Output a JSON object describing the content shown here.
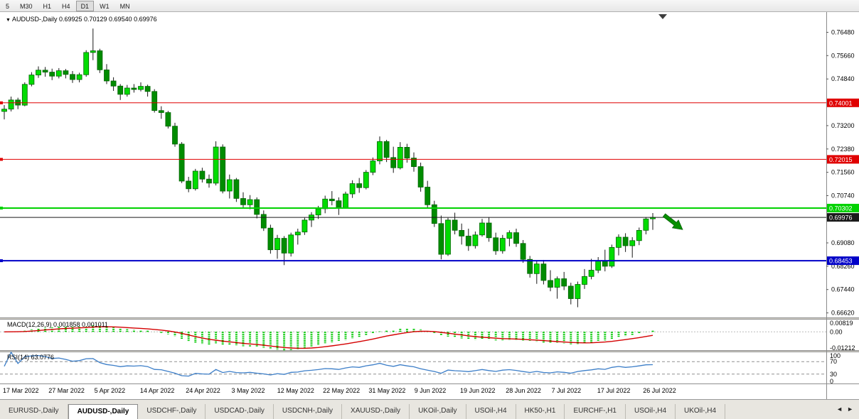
{
  "toolbar": {
    "timeframes": [
      "5",
      "M30",
      "H1",
      "H4",
      "D1",
      "W1",
      "MN"
    ],
    "active_timeframe": "D1"
  },
  "chart": {
    "marker_icon": "▼",
    "symbol_title": "AUDUSD-,Daily",
    "ohlc_title": "0.69925 0.70129 0.69540 0.69976"
  },
  "chart_data": {
    "type": "candlestick",
    "symbol": "AUDUSD",
    "timeframe": "Daily",
    "last_candle": {
      "open": 0.69925,
      "high": 0.70129,
      "low": 0.6954,
      "close": 0.69976
    },
    "price_range": [
      0.6646,
      0.7719
    ],
    "y_ticks": [
      0.7648,
      0.7566,
      0.7484,
      0.732,
      0.7238,
      0.7156,
      0.7074,
      0.6908,
      0.6826,
      0.6744,
      0.6662
    ],
    "x_labels": [
      "17 Mar 2022",
      "27 Mar 2022",
      "5 Apr 2022",
      "14 Apr 2022",
      "24 Apr 2022",
      "3 May 2022",
      "12 May 2022",
      "22 May 2022",
      "31 May 2022",
      "9 Jun 2022",
      "19 Jun 2022",
      "28 Jun 2022",
      "7 Jul 2022",
      "17 Jul 2022",
      "26 Jul 2022"
    ],
    "candles": [
      [
        0.737,
        0.7392,
        0.7342,
        0.7378
      ],
      [
        0.7378,
        0.7422,
        0.737,
        0.741
      ],
      [
        0.741,
        0.7418,
        0.7378,
        0.7392
      ],
      [
        0.7392,
        0.7472,
        0.7388,
        0.7465
      ],
      [
        0.7465,
        0.7508,
        0.7458,
        0.7498
      ],
      [
        0.7498,
        0.7528,
        0.7488,
        0.7515
      ],
      [
        0.7515,
        0.7526,
        0.7492,
        0.7508
      ],
      [
        0.7508,
        0.752,
        0.748,
        0.7494
      ],
      [
        0.7494,
        0.7522,
        0.7486,
        0.7513
      ],
      [
        0.7513,
        0.7519,
        0.7486,
        0.75
      ],
      [
        0.75,
        0.7512,
        0.747,
        0.7482
      ],
      [
        0.7482,
        0.7506,
        0.7472,
        0.7499
      ],
      [
        0.7499,
        0.7585,
        0.7492,
        0.7577
      ],
      [
        0.7577,
        0.7661,
        0.755,
        0.7583
      ],
      [
        0.7583,
        0.759,
        0.7505,
        0.7516
      ],
      [
        0.7516,
        0.7536,
        0.7466,
        0.7477
      ],
      [
        0.7477,
        0.749,
        0.7442,
        0.7459
      ],
      [
        0.7459,
        0.7466,
        0.741,
        0.743
      ],
      [
        0.743,
        0.7463,
        0.7422,
        0.7452
      ],
      [
        0.7452,
        0.7466,
        0.7436,
        0.7447
      ],
      [
        0.7447,
        0.7472,
        0.744,
        0.7458
      ],
      [
        0.7458,
        0.7464,
        0.7422,
        0.744
      ],
      [
        0.744,
        0.7448,
        0.7366,
        0.7373
      ],
      [
        0.7373,
        0.7388,
        0.7344,
        0.7366
      ],
      [
        0.7366,
        0.7372,
        0.731,
        0.7318
      ],
      [
        0.7318,
        0.733,
        0.7246,
        0.7255
      ],
      [
        0.7255,
        0.7262,
        0.7118,
        0.7125
      ],
      [
        0.7125,
        0.714,
        0.7086,
        0.7098
      ],
      [
        0.7098,
        0.7168,
        0.7092,
        0.716
      ],
      [
        0.716,
        0.7172,
        0.712,
        0.7132
      ],
      [
        0.7132,
        0.7148,
        0.7102,
        0.7118
      ],
      [
        0.7118,
        0.7265,
        0.711,
        0.7245
      ],
      [
        0.7245,
        0.7254,
        0.7082,
        0.709
      ],
      [
        0.709,
        0.7148,
        0.7064,
        0.713
      ],
      [
        0.713,
        0.7136,
        0.7052,
        0.7064
      ],
      [
        0.7064,
        0.7086,
        0.703,
        0.7042
      ],
      [
        0.7042,
        0.7076,
        0.7026,
        0.706
      ],
      [
        0.706,
        0.7068,
        0.6994,
        0.7008
      ],
      [
        0.7008,
        0.7022,
        0.695,
        0.696
      ],
      [
        0.696,
        0.6972,
        0.687,
        0.6884
      ],
      [
        0.6884,
        0.6936,
        0.6852,
        0.6924
      ],
      [
        0.6924,
        0.6932,
        0.683,
        0.6872
      ],
      [
        0.6872,
        0.6944,
        0.686,
        0.6936
      ],
      [
        0.6936,
        0.6958,
        0.6902,
        0.6946
      ],
      [
        0.6946,
        0.6996,
        0.6936,
        0.6988
      ],
      [
        0.6988,
        0.7016,
        0.6964,
        0.7006
      ],
      [
        0.7006,
        0.7038,
        0.6992,
        0.7028
      ],
      [
        0.7028,
        0.7074,
        0.7012,
        0.7062
      ],
      [
        0.7062,
        0.709,
        0.704,
        0.7056
      ],
      [
        0.7056,
        0.7068,
        0.7006,
        0.7032
      ],
      [
        0.7032,
        0.7088,
        0.7028,
        0.708
      ],
      [
        0.708,
        0.7128,
        0.7066,
        0.7116
      ],
      [
        0.7116,
        0.7136,
        0.7084,
        0.7102
      ],
      [
        0.7102,
        0.7164,
        0.7096,
        0.7156
      ],
      [
        0.7156,
        0.7208,
        0.7146,
        0.7196
      ],
      [
        0.7196,
        0.7282,
        0.7184,
        0.7264
      ],
      [
        0.7264,
        0.727,
        0.7192,
        0.7208
      ],
      [
        0.7208,
        0.7246,
        0.7154,
        0.7172
      ],
      [
        0.7172,
        0.7262,
        0.7166,
        0.7244
      ],
      [
        0.7244,
        0.7256,
        0.719,
        0.7206
      ],
      [
        0.7206,
        0.7226,
        0.7158,
        0.7176
      ],
      [
        0.7176,
        0.719,
        0.7088,
        0.7104
      ],
      [
        0.7104,
        0.7126,
        0.7028,
        0.7042
      ],
      [
        0.7042,
        0.7056,
        0.6964,
        0.6976
      ],
      [
        0.6976,
        0.7004,
        0.685,
        0.6868
      ],
      [
        0.6868,
        0.6996,
        0.6862,
        0.6988
      ],
      [
        0.6988,
        0.7014,
        0.6938,
        0.6952
      ],
      [
        0.6952,
        0.6976,
        0.6902,
        0.6932
      ],
      [
        0.6932,
        0.6958,
        0.688,
        0.6898
      ],
      [
        0.6898,
        0.6948,
        0.6888,
        0.6936
      ],
      [
        0.6936,
        0.6992,
        0.693,
        0.6978
      ],
      [
        0.6978,
        0.6998,
        0.6912,
        0.6926
      ],
      [
        0.6926,
        0.6944,
        0.6866,
        0.688
      ],
      [
        0.688,
        0.6936,
        0.687,
        0.6924
      ],
      [
        0.6924,
        0.6952,
        0.6896,
        0.6944
      ],
      [
        0.6944,
        0.6958,
        0.6894,
        0.6906
      ],
      [
        0.6906,
        0.6918,
        0.6838,
        0.685
      ],
      [
        0.685,
        0.6862,
        0.6786,
        0.68
      ],
      [
        0.68,
        0.6846,
        0.6764,
        0.6834
      ],
      [
        0.6834,
        0.6848,
        0.6762,
        0.6776
      ],
      [
        0.6776,
        0.6812,
        0.6738,
        0.6752
      ],
      [
        0.6752,
        0.679,
        0.6712,
        0.6782
      ],
      [
        0.6782,
        0.6806,
        0.6742,
        0.6756
      ],
      [
        0.6756,
        0.6768,
        0.6692,
        0.6712
      ],
      [
        0.6712,
        0.6772,
        0.6682,
        0.6762
      ],
      [
        0.6762,
        0.6816,
        0.6746,
        0.679
      ],
      [
        0.679,
        0.6852,
        0.678,
        0.6812
      ],
      [
        0.6812,
        0.6858,
        0.6802,
        0.6846
      ],
      [
        0.6846,
        0.6884,
        0.6808,
        0.6826
      ],
      [
        0.6826,
        0.6902,
        0.682,
        0.6892
      ],
      [
        0.6892,
        0.6938,
        0.6864,
        0.6928
      ],
      [
        0.6928,
        0.6942,
        0.6876,
        0.6898
      ],
      [
        0.6898,
        0.6928,
        0.6856,
        0.6916
      ],
      [
        0.6916,
        0.6962,
        0.69,
        0.6952
      ],
      [
        0.6952,
        0.6998,
        0.6938,
        0.6992
      ],
      [
        0.69925,
        0.70129,
        0.6954,
        0.69976
      ]
    ],
    "hlines": [
      {
        "value": 0.74001,
        "label": "0.74001",
        "color": "#E00000",
        "width": 1
      },
      {
        "value": 0.72015,
        "label": "0.72015",
        "color": "#E00000",
        "width": 1
      },
      {
        "value": 0.70302,
        "label": "0.70302",
        "color": "#00D200",
        "width": 2
      },
      {
        "value": 0.68453,
        "label": "0.68453",
        "color": "#0000C8",
        "width": 2
      }
    ],
    "current_price": {
      "value": 0.69976,
      "label": "0.69976",
      "color": "#1A1A1A"
    },
    "candle_colors": {
      "bull": "#00DC00",
      "bear": "#008C00",
      "wick": "#1A1A1A",
      "outline": "#006400"
    },
    "arrow_annotation": {
      "color": "#089000"
    },
    "macd": {
      "label": "MACD(12,26,9) 0.001858 0.001011",
      "fast": 12,
      "slow": 26,
      "signal_period": 9,
      "range": [
        -0.01212,
        0.00819
      ],
      "ticks": [
        {
          "value": 0.00819,
          "label": "0.00819"
        },
        {
          "value": 0,
          "label": "0.00"
        },
        {
          "value": -0.01212,
          "label": "-0.01212"
        }
      ],
      "histogram_color": "#00C800",
      "signal_color": "#D40000"
    },
    "rsi": {
      "label": "RSI(14) 63.0776",
      "period": 14,
      "value": 63.0776,
      "range": [
        0,
        100
      ],
      "levels": [
        30,
        70
      ],
      "ticks": [
        {
          "value": 100,
          "label": "100"
        },
        {
          "value": 70,
          "label": "70"
        },
        {
          "value": 30,
          "label": "30"
        },
        {
          "value": 0,
          "label": "0"
        }
      ],
      "line_color": "#3C7EC8",
      "level_color": "#909090"
    }
  },
  "tabbar": {
    "tabs": [
      {
        "label": "EURUSD-,Daily",
        "active": false
      },
      {
        "label": "AUDUSD-,Daily",
        "active": true
      },
      {
        "label": "USDCHF-,Daily",
        "active": false
      },
      {
        "label": "USDCAD-,Daily",
        "active": false
      },
      {
        "label": "USDCNH-,Daily",
        "active": false
      },
      {
        "label": "XAUUSD-,Daily",
        "active": false
      },
      {
        "label": "UKOil-,Daily",
        "active": false
      },
      {
        "label": "USOil-,H4",
        "active": false
      },
      {
        "label": "HK50-,H1",
        "active": false
      },
      {
        "label": "EURCHF-,H1",
        "active": false
      },
      {
        "label": "USOil-,H4",
        "active": false
      },
      {
        "label": "UKOil-,H4",
        "active": false
      }
    ],
    "scroll_left_icon": "◄",
    "scroll_right_icon": "►"
  }
}
